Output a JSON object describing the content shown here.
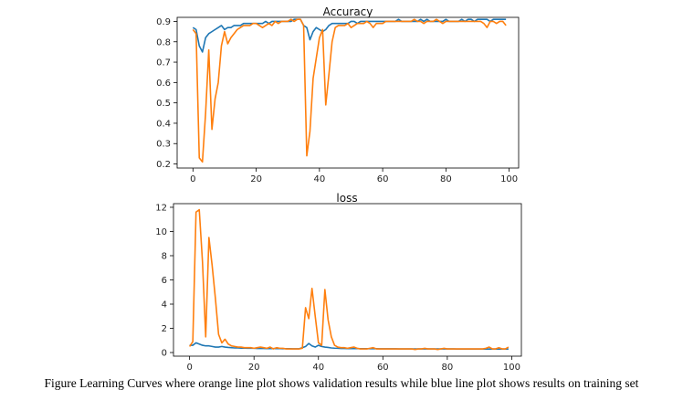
{
  "top_strip": {
    "text": "",
    "link": ""
  },
  "colors": {
    "training": "#1f77b4",
    "validation": "#ff7f0e",
    "axes": "#000000"
  },
  "caption": "Figure Learning Curves where orange line plot shows validation results while blue line plot shows results on training set",
  "chart_data": [
    {
      "type": "line",
      "title": "Accuracy",
      "xlabel": "",
      "ylabel": "",
      "xlim": [
        -5,
        103
      ],
      "ylim": [
        0.18,
        0.92
      ],
      "xticks": [
        0,
        20,
        40,
        60,
        80,
        100
      ],
      "yticks": [
        0.2,
        0.3,
        0.4,
        0.5,
        0.6,
        0.7,
        0.8,
        0.9
      ],
      "ytick_labels": [
        "0.2",
        "0.3",
        "0.4",
        "0.5",
        "0.6",
        "0.7",
        "0.8",
        "0.9"
      ],
      "grid": false,
      "series": [
        {
          "color": "#1f77b4",
          "x": [
            0,
            1,
            2,
            3,
            4,
            5,
            6,
            7,
            8,
            9,
            10,
            11,
            12,
            13,
            14,
            15,
            16,
            17,
            18,
            19,
            20,
            21,
            22,
            23,
            24,
            25,
            26,
            27,
            28,
            29,
            30,
            31,
            32,
            33,
            34,
            35,
            36,
            37,
            38,
            39,
            40,
            41,
            42,
            43,
            44,
            45,
            46,
            47,
            48,
            49,
            50,
            51,
            52,
            53,
            54,
            55,
            56,
            57,
            58,
            59,
            60,
            61,
            62,
            63,
            64,
            65,
            66,
            67,
            68,
            69,
            70,
            71,
            72,
            73,
            74,
            75,
            76,
            77,
            78,
            79,
            80,
            81,
            82,
            83,
            84,
            85,
            86,
            87,
            88,
            89,
            90,
            91,
            92,
            93,
            94,
            95,
            96,
            97,
            98,
            99
          ],
          "y": [
            0.87,
            0.86,
            0.78,
            0.75,
            0.82,
            0.84,
            0.85,
            0.86,
            0.87,
            0.88,
            0.86,
            0.87,
            0.87,
            0.88,
            0.88,
            0.88,
            0.89,
            0.89,
            0.89,
            0.89,
            0.89,
            0.89,
            0.89,
            0.9,
            0.89,
            0.9,
            0.9,
            0.9,
            0.9,
            0.9,
            0.9,
            0.9,
            0.91,
            0.91,
            0.91,
            0.88,
            0.87,
            0.81,
            0.85,
            0.87,
            0.86,
            0.85,
            0.86,
            0.88,
            0.89,
            0.89,
            0.89,
            0.89,
            0.89,
            0.89,
            0.9,
            0.9,
            0.89,
            0.9,
            0.9,
            0.9,
            0.9,
            0.9,
            0.9,
            0.9,
            0.9,
            0.9,
            0.9,
            0.9,
            0.9,
            0.91,
            0.9,
            0.9,
            0.9,
            0.9,
            0.9,
            0.9,
            0.91,
            0.9,
            0.91,
            0.9,
            0.9,
            0.9,
            0.9,
            0.9,
            0.91,
            0.9,
            0.9,
            0.9,
            0.9,
            0.91,
            0.9,
            0.91,
            0.91,
            0.9,
            0.91,
            0.91,
            0.91,
            0.91,
            0.9,
            0.91,
            0.91,
            0.91,
            0.91,
            0.91
          ]
        },
        {
          "color": "#ff7f0e",
          "x": [
            0,
            1,
            2,
            3,
            4,
            5,
            6,
            7,
            8,
            9,
            10,
            11,
            12,
            13,
            14,
            15,
            16,
            17,
            18,
            19,
            20,
            21,
            22,
            23,
            24,
            25,
            26,
            27,
            28,
            29,
            30,
            31,
            32,
            33,
            34,
            35,
            36,
            37,
            38,
            39,
            40,
            41,
            42,
            43,
            44,
            45,
            46,
            47,
            48,
            49,
            50,
            51,
            52,
            53,
            54,
            55,
            56,
            57,
            58,
            59,
            60,
            61,
            62,
            63,
            64,
            65,
            66,
            67,
            68,
            69,
            70,
            71,
            72,
            73,
            74,
            75,
            76,
            77,
            78,
            79,
            80,
            81,
            82,
            83,
            84,
            85,
            86,
            87,
            88,
            89,
            90,
            91,
            92,
            93,
            94,
            95,
            96,
            97,
            98,
            99
          ],
          "y": [
            0.86,
            0.84,
            0.23,
            0.21,
            0.45,
            0.76,
            0.37,
            0.52,
            0.6,
            0.78,
            0.85,
            0.79,
            0.82,
            0.84,
            0.86,
            0.87,
            0.88,
            0.88,
            0.88,
            0.89,
            0.89,
            0.88,
            0.87,
            0.88,
            0.89,
            0.88,
            0.9,
            0.89,
            0.9,
            0.9,
            0.9,
            0.91,
            0.9,
            0.91,
            0.91,
            0.88,
            0.24,
            0.36,
            0.62,
            0.72,
            0.82,
            0.86,
            0.49,
            0.64,
            0.8,
            0.87,
            0.88,
            0.88,
            0.88,
            0.89,
            0.87,
            0.88,
            0.89,
            0.89,
            0.89,
            0.9,
            0.89,
            0.87,
            0.89,
            0.89,
            0.89,
            0.9,
            0.9,
            0.9,
            0.9,
            0.9,
            0.9,
            0.9,
            0.9,
            0.9,
            0.91,
            0.9,
            0.9,
            0.89,
            0.9,
            0.9,
            0.9,
            0.91,
            0.9,
            0.89,
            0.9,
            0.9,
            0.9,
            0.9,
            0.9,
            0.9,
            0.9,
            0.9,
            0.9,
            0.9,
            0.9,
            0.9,
            0.89,
            0.87,
            0.9,
            0.9,
            0.89,
            0.9,
            0.9,
            0.88
          ]
        }
      ]
    },
    {
      "type": "line",
      "title": "loss",
      "xlabel": "",
      "ylabel": "",
      "xlim": [
        -5,
        103
      ],
      "ylim": [
        -0.3,
        12.3
      ],
      "xticks": [
        0,
        20,
        40,
        60,
        80,
        100
      ],
      "yticks": [
        0,
        2,
        4,
        6,
        8,
        10,
        12
      ],
      "ytick_labels": [
        "0",
        "2",
        "4",
        "6",
        "8",
        "10",
        "12"
      ],
      "grid": false,
      "series": [
        {
          "color": "#1f77b4",
          "x": [
            0,
            1,
            2,
            3,
            4,
            5,
            6,
            7,
            8,
            9,
            10,
            11,
            12,
            13,
            14,
            15,
            16,
            17,
            18,
            19,
            20,
            21,
            22,
            23,
            24,
            25,
            26,
            27,
            28,
            29,
            30,
            31,
            32,
            33,
            34,
            35,
            36,
            37,
            38,
            39,
            40,
            41,
            42,
            43,
            44,
            45,
            46,
            47,
            48,
            49,
            50,
            51,
            52,
            53,
            54,
            55,
            56,
            57,
            58,
            59,
            60,
            61,
            62,
            63,
            64,
            65,
            66,
            67,
            68,
            69,
            70,
            71,
            72,
            73,
            74,
            75,
            76,
            77,
            78,
            79,
            80,
            81,
            82,
            83,
            84,
            85,
            86,
            87,
            88,
            89,
            90,
            91,
            92,
            93,
            94,
            95,
            96,
            97,
            98,
            99
          ],
          "y": [
            0.6,
            0.6,
            0.8,
            0.7,
            0.6,
            0.55,
            0.55,
            0.5,
            0.45,
            0.45,
            0.5,
            0.45,
            0.42,
            0.4,
            0.38,
            0.38,
            0.36,
            0.36,
            0.35,
            0.35,
            0.35,
            0.34,
            0.34,
            0.34,
            0.33,
            0.33,
            0.33,
            0.33,
            0.33,
            0.32,
            0.32,
            0.32,
            0.31,
            0.31,
            0.31,
            0.4,
            0.5,
            0.75,
            0.55,
            0.45,
            0.6,
            0.5,
            0.45,
            0.42,
            0.38,
            0.36,
            0.35,
            0.34,
            0.34,
            0.33,
            0.33,
            0.33,
            0.33,
            0.32,
            0.32,
            0.32,
            0.32,
            0.32,
            0.32,
            0.31,
            0.31,
            0.31,
            0.31,
            0.31,
            0.31,
            0.3,
            0.3,
            0.3,
            0.3,
            0.3,
            0.3,
            0.3,
            0.3,
            0.3,
            0.3,
            0.3,
            0.3,
            0.3,
            0.3,
            0.3,
            0.3,
            0.3,
            0.3,
            0.29,
            0.29,
            0.29,
            0.29,
            0.29,
            0.29,
            0.29,
            0.29,
            0.29,
            0.29,
            0.29,
            0.29,
            0.29,
            0.29,
            0.29,
            0.29,
            0.29
          ]
        },
        {
          "color": "#ff7f0e",
          "x": [
            0,
            1,
            2,
            3,
            4,
            5,
            6,
            7,
            8,
            9,
            10,
            11,
            12,
            13,
            14,
            15,
            16,
            17,
            18,
            19,
            20,
            21,
            22,
            23,
            24,
            25,
            26,
            27,
            28,
            29,
            30,
            31,
            32,
            33,
            34,
            35,
            36,
            37,
            38,
            39,
            40,
            41,
            42,
            43,
            44,
            45,
            46,
            47,
            48,
            49,
            50,
            51,
            52,
            53,
            54,
            55,
            56,
            57,
            58,
            59,
            60,
            61,
            62,
            63,
            64,
            65,
            66,
            67,
            68,
            69,
            70,
            71,
            72,
            73,
            74,
            75,
            76,
            77,
            78,
            79,
            80,
            81,
            82,
            83,
            84,
            85,
            86,
            87,
            88,
            89,
            90,
            91,
            92,
            93,
            94,
            95,
            96,
            97,
            98,
            99
          ],
          "y": [
            0.5,
            0.9,
            11.6,
            11.8,
            7.5,
            1.3,
            9.5,
            7.2,
            4.5,
            1.5,
            0.8,
            1.1,
            0.7,
            0.55,
            0.5,
            0.45,
            0.45,
            0.4,
            0.4,
            0.4,
            0.35,
            0.4,
            0.45,
            0.4,
            0.35,
            0.45,
            0.3,
            0.4,
            0.35,
            0.35,
            0.3,
            0.3,
            0.3,
            0.3,
            0.3,
            0.35,
            3.7,
            2.8,
            5.3,
            3.0,
            0.8,
            0.6,
            5.2,
            2.7,
            1.3,
            0.6,
            0.45,
            0.4,
            0.4,
            0.35,
            0.4,
            0.45,
            0.35,
            0.3,
            0.3,
            0.3,
            0.35,
            0.4,
            0.3,
            0.3,
            0.3,
            0.3,
            0.3,
            0.3,
            0.3,
            0.3,
            0.3,
            0.3,
            0.3,
            0.3,
            0.25,
            0.3,
            0.3,
            0.35,
            0.3,
            0.3,
            0.3,
            0.25,
            0.3,
            0.35,
            0.3,
            0.3,
            0.3,
            0.3,
            0.3,
            0.3,
            0.3,
            0.3,
            0.3,
            0.3,
            0.3,
            0.3,
            0.35,
            0.45,
            0.3,
            0.3,
            0.4,
            0.3,
            0.3,
            0.45
          ]
        }
      ]
    }
  ]
}
